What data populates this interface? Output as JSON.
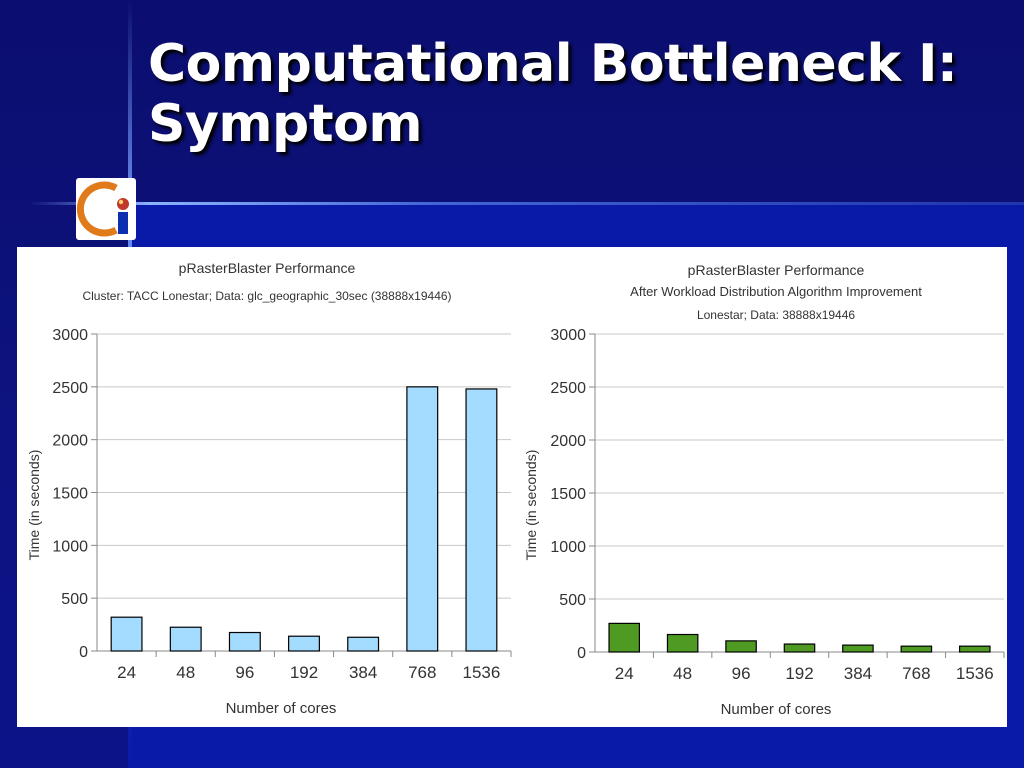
{
  "slide": {
    "title_line1": "Computational Bottleneck I:",
    "title_line2": "Symptom",
    "logo_icon": "ci-logo-icon"
  },
  "colors": {
    "background": "#0b0f78",
    "left_bar": "#a3dcff",
    "right_bar": "#4f9a22",
    "title": "#ffffff"
  },
  "chart_data": [
    {
      "type": "bar",
      "title": "pRasterBlaster Performance",
      "subtitle": "Cluster: TACC Lonestar; Data: glc_geographic_30sec (38888x19446)",
      "xlabel": "Number of cores",
      "ylabel": "Time (in seconds)",
      "categories": [
        "24",
        "48",
        "96",
        "192",
        "384",
        "768",
        "1536"
      ],
      "values": [
        320,
        225,
        175,
        140,
        130,
        2500,
        2480
      ],
      "ylim": [
        0,
        3000
      ],
      "yticks": [
        "0",
        "500",
        "1000",
        "1500",
        "2000",
        "2500",
        "3000"
      ],
      "grid": true,
      "bar_color": "#a3dcff"
    },
    {
      "type": "bar",
      "title": "pRasterBlaster Performance",
      "subtitle": "After Workload Distribution Algorithm Improvement",
      "subtitle2": "Lonestar; Data: 38888x19446",
      "xlabel": "Number of cores",
      "ylabel": "Time (in seconds)",
      "categories": [
        "24",
        "48",
        "96",
        "192",
        "384",
        "768",
        "1536"
      ],
      "values": [
        270,
        165,
        105,
        75,
        65,
        55,
        55
      ],
      "ylim": [
        0,
        3000
      ],
      "yticks": [
        "0",
        "500",
        "1000",
        "1500",
        "2000",
        "2500",
        "3000"
      ],
      "grid": true,
      "bar_color": "#4f9a22"
    }
  ]
}
